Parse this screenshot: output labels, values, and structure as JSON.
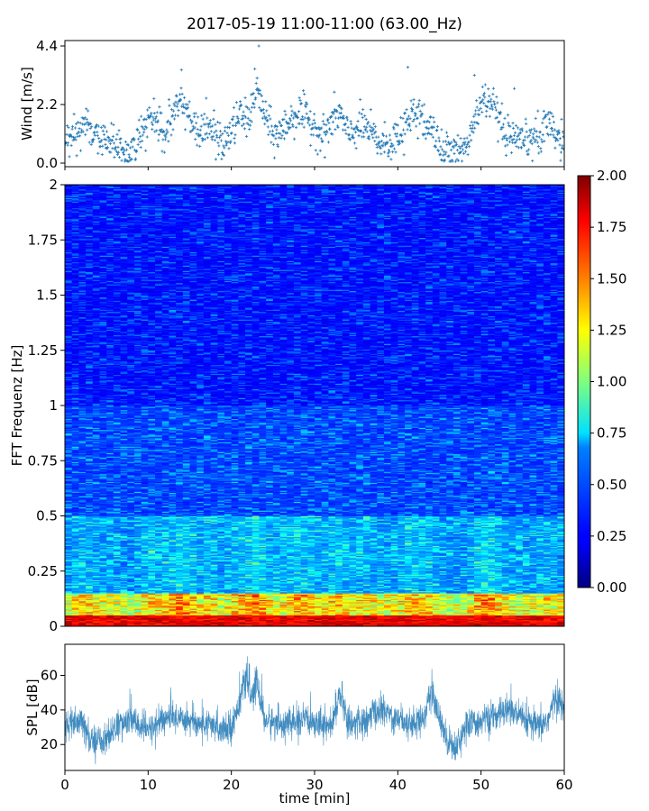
{
  "figure": {
    "title": "2017-05-19 11:00-11:00 (63.00_Hz)"
  },
  "chart_data": [
    {
      "type": "scatter",
      "panel": "wind",
      "ylabel": "Wind [m/s]",
      "xlim": [
        0,
        60
      ],
      "ylim": [
        0,
        4.4
      ],
      "yticks": [
        0.0,
        2.2,
        4.4
      ],
      "ytick_labels": [
        "0.0",
        "2.2",
        "4.4"
      ],
      "marker": "+",
      "color": "#1f77b4",
      "wind_profile": {
        "t": [
          0,
          1,
          2,
          2.8,
          3.5,
          4.5,
          5.5,
          6.5,
          7.5,
          8.5,
          9.5,
          10.2,
          11,
          12,
          13,
          14,
          15,
          16,
          17,
          18,
          19,
          20,
          21,
          22,
          23,
          24,
          25,
          26,
          27,
          28,
          29,
          30,
          31,
          32,
          33,
          34,
          35,
          36,
          37,
          38,
          39,
          40,
          41,
          42,
          43,
          44,
          45,
          46,
          47,
          48,
          49,
          50,
          51,
          52,
          53,
          54,
          55,
          56,
          57,
          58,
          59,
          60
        ],
        "v": [
          0.6,
          1.0,
          1.3,
          1.6,
          1.0,
          0.8,
          0.9,
          0.6,
          0.3,
          0.6,
          1.2,
          1.8,
          1.4,
          1.0,
          1.8,
          2.3,
          1.8,
          1.1,
          1.4,
          1.0,
          0.7,
          1.2,
          1.8,
          1.6,
          2.8,
          1.8,
          1.0,
          1.2,
          1.6,
          1.9,
          1.7,
          1.4,
          1.0,
          1.5,
          1.9,
          1.0,
          1.3,
          1.4,
          1.0,
          0.7,
          0.8,
          0.9,
          1.6,
          1.9,
          1.5,
          1.4,
          0.6,
          0.5,
          0.6,
          0.4,
          1.3,
          2.3,
          2.4,
          1.6,
          1.0,
          0.8,
          0.7,
          0.9,
          1.0,
          1.4,
          1.0,
          0.6
        ]
      },
      "peaks": [
        {
          "x": 23.3,
          "y": 4.4
        },
        {
          "x": 41.2,
          "y": 3.6
        },
        {
          "x": 14.0,
          "y": 3.5
        },
        {
          "x": 49.2,
          "y": 3.3
        },
        {
          "x": 54.0,
          "y": 2.8
        }
      ]
    },
    {
      "type": "heatmap",
      "panel": "spectrogram",
      "ylabel": "FFT Frequenz [Hz]",
      "xlim": [
        0,
        60
      ],
      "ylim": [
        0,
        2
      ],
      "yticks": [
        0,
        0.25,
        0.5,
        0.75,
        1,
        1.25,
        1.5,
        1.75,
        2
      ],
      "ytick_labels": [
        "0",
        "0.25",
        "0.5",
        "0.75",
        "1",
        "1.25",
        "1.5",
        "1.75",
        "2"
      ],
      "colormap": "jet",
      "colorbar": {
        "range": [
          0.0,
          2.0
        ],
        "ticks": [
          0.0,
          0.25,
          0.5,
          0.75,
          1.0,
          1.25,
          1.5,
          1.75,
          2.0
        ],
        "tick_labels": [
          "0.00",
          "0.25",
          "0.50",
          "0.75",
          "1.00",
          "1.25",
          "1.50",
          "1.75",
          "2.00"
        ]
      },
      "description_values": {
        "freq_0_to_0.05_Hz": 1.9,
        "freq_0.05_to_0.15_Hz": 1.1,
        "freq_0.15_to_0.5_Hz": 0.6,
        "freq_0.5_to_1_Hz": 0.4,
        "freq_1_to_2_Hz": 0.28
      }
    },
    {
      "type": "line",
      "panel": "spl",
      "ylabel": "SPL [dB]",
      "xlabel": "time [min]",
      "xlim": [
        0,
        60
      ],
      "ylim": [
        5,
        78
      ],
      "yticks": [
        20,
        40,
        60
      ],
      "ytick_labels": [
        "20",
        "40",
        "60"
      ],
      "xticks": [
        0,
        10,
        20,
        30,
        40,
        50,
        60
      ],
      "xtick_labels": [
        "0",
        "10",
        "20",
        "30",
        "40",
        "50",
        "60"
      ],
      "color": "#1f77b4",
      "spl_profile": {
        "t": [
          0,
          2,
          3,
          5,
          6,
          8,
          10,
          12,
          14,
          16,
          18,
          20,
          21,
          21.8,
          22.5,
          23,
          24,
          26,
          28,
          30,
          32,
          33,
          34,
          36,
          37,
          38,
          40,
          42,
          43,
          44,
          45,
          46,
          47,
          48,
          50,
          52,
          53,
          55,
          57,
          58,
          59,
          60
        ],
        "v": [
          30,
          33,
          22,
          23,
          30,
          34,
          28,
          35,
          36,
          32,
          30,
          30,
          45,
          60,
          44,
          58,
          34,
          32,
          33,
          34,
          30,
          50,
          33,
          32,
          38,
          40,
          35,
          32,
          35,
          50,
          35,
          22,
          18,
          30,
          34,
          36,
          42,
          34,
          30,
          34,
          48,
          40
        ]
      }
    }
  ]
}
